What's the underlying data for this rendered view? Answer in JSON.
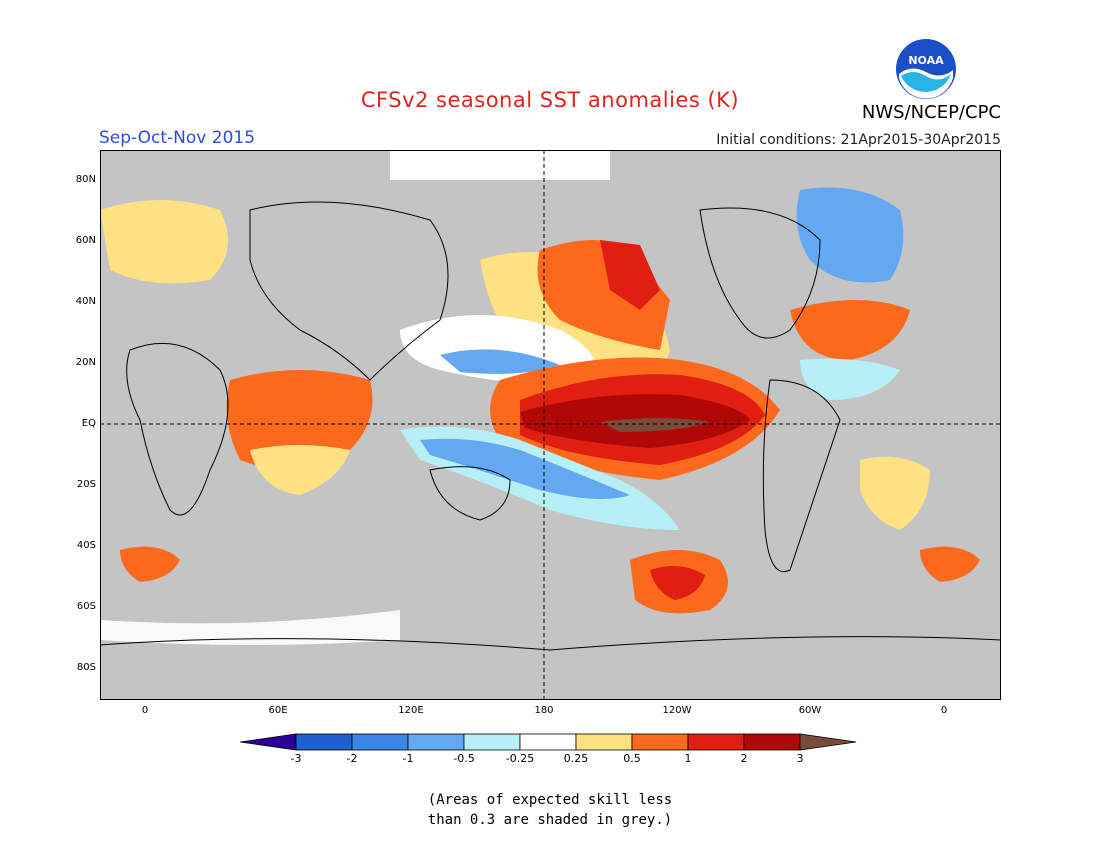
{
  "header": {
    "title": "CFSv2 seasonal SST anomalies (K)",
    "season": "Sep-Oct-Nov 2015",
    "initial_conditions": "Initial conditions: 21Apr2015-30Apr2015",
    "agency": "NWS/NCEP/CPC",
    "logo_text": "NOAA"
  },
  "map": {
    "lat_labels": [
      "80N",
      "60N",
      "40N",
      "20N",
      "EQ",
      "20S",
      "40S",
      "60S",
      "80S"
    ],
    "lon_labels": [
      "0",
      "60E",
      "120E",
      "180",
      "120W",
      "60W",
      "0"
    ],
    "reference_lines": [
      "EQ",
      "180"
    ]
  },
  "colorbar": {
    "labels": [
      "-3",
      "-2",
      "-1",
      "-0.5",
      "-0.25",
      "0.25",
      "0.5",
      "1",
      "2",
      "3"
    ],
    "colors": [
      "#2c0096",
      "#1f5fd0",
      "#3a85e6",
      "#63a8f0",
      "#b6f0f6",
      "#ffffff",
      "#fde183",
      "#fb6a1c",
      "#e01e12",
      "#b00707",
      "#7a4a3a"
    ]
  },
  "footnote": {
    "line1": "(Areas of expected skill less",
    "line2": "than 0.3 are shaded in grey.)"
  },
  "colors": {
    "grey_mask": "#c4c4c4",
    "title": "#e0241c",
    "season": "#2a4fd6"
  }
}
